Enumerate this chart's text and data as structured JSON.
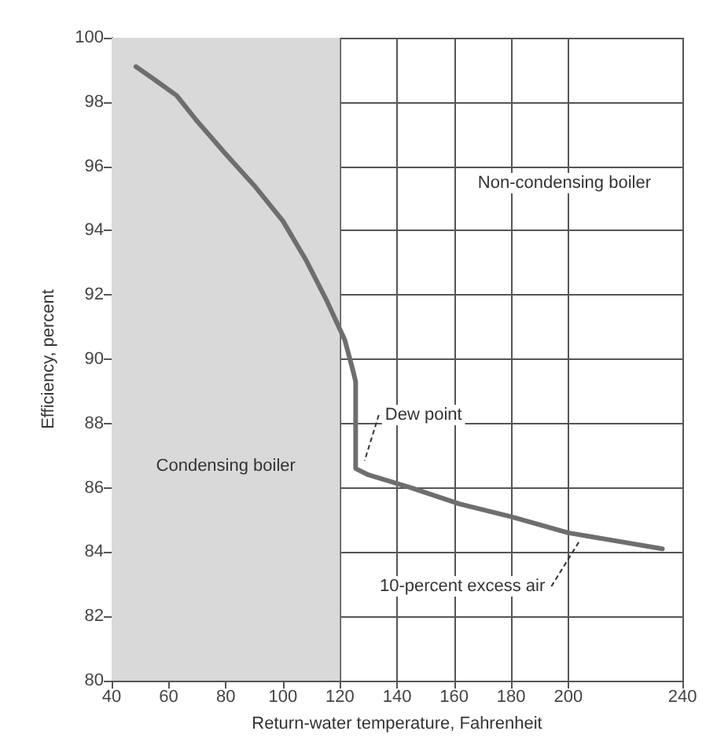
{
  "chart_data": {
    "type": "line",
    "xlabel": "Return-water temperature, Fahrenheit",
    "ylabel": "Efficiency, percent",
    "xlim": [
      40,
      240
    ],
    "xticks": [
      40,
      60,
      80,
      100,
      120,
      140,
      160,
      180,
      200,
      240
    ],
    "ylim": [
      80,
      100
    ],
    "yticks": [
      80,
      82,
      84,
      86,
      88,
      90,
      92,
      94,
      96,
      98,
      100
    ],
    "grid": true,
    "marker": "none",
    "line_style": "solid",
    "series": [
      {
        "color": "#6e6e6e",
        "x": [
          48.5,
          55,
          62.8,
          70,
          79.8,
          90,
          100,
          108,
          115.5,
          121.7,
          124.7,
          125.5,
          125.5,
          130,
          145,
          161.9,
          180,
          200,
          233
        ],
        "values": [
          99.1,
          98.7,
          98.2,
          97.4,
          96.4,
          95.4,
          94.3,
          93.1,
          91.8,
          90.6,
          89.6,
          89.3,
          86.6,
          86.4,
          86.0,
          85.5,
          85.1,
          84.6,
          84.1
        ]
      }
    ],
    "bands": [
      {
        "axis": "x",
        "from": 40,
        "to": 120,
        "label": "Condensing boiler",
        "color": "#d9d9d9"
      }
    ],
    "annotations": [
      "Non-condensing boiler",
      {
        "text": "Dew point",
        "x": 127,
        "y": 86.7
      },
      {
        "text": "10-percent excess air",
        "x": 204,
        "y": 84.5
      }
    ]
  }
}
